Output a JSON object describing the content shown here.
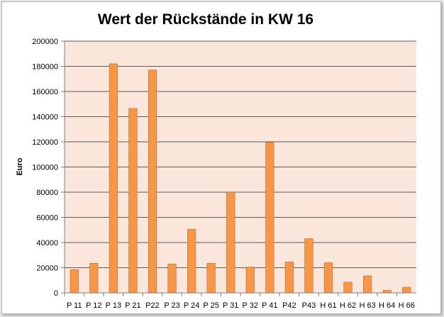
{
  "chart_data": {
    "type": "bar",
    "title": "Wert der Rückstände in KW 16",
    "xlabel": "",
    "ylabel": "Euro",
    "ylim": [
      0,
      200000
    ],
    "yticks": [
      0,
      20000,
      40000,
      60000,
      80000,
      100000,
      120000,
      140000,
      160000,
      180000,
      200000
    ],
    "grid": true,
    "legend": "none",
    "categories": [
      "P 11",
      "P 12",
      "P 13",
      "P 21",
      "P22",
      "P 23",
      "P 24",
      "P 25",
      "P 31",
      "P 32",
      "P 41",
      "P42",
      "P43",
      "H 61",
      "H 62",
      "H 63",
      "H 64",
      "H 66"
    ],
    "values": [
      18500,
      23500,
      182000,
      146500,
      177000,
      23000,
      50500,
      23500,
      80000,
      20500,
      119500,
      24500,
      43000,
      24000,
      8500,
      13500,
      2000,
      4500
    ],
    "colors": {
      "bar": "#f79646",
      "bar_edge": "#c0692a",
      "plot_bg": "#fbe6dc",
      "grid": "#5a5a5a"
    }
  }
}
